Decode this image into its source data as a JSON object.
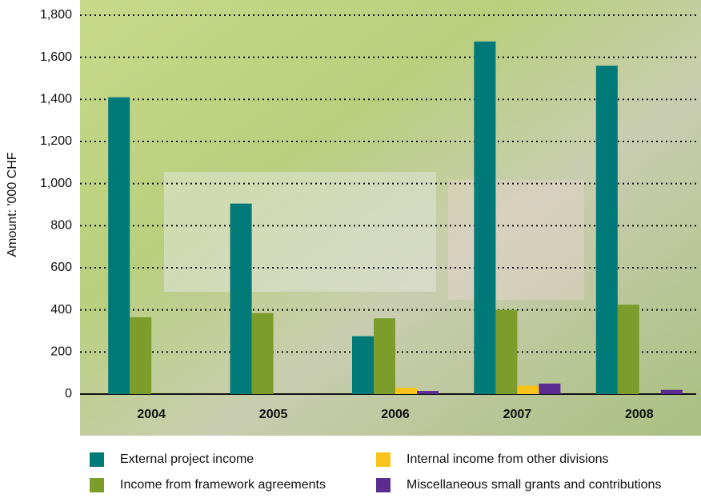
{
  "chart_data": {
    "type": "bar",
    "y_label": "Amount: '000 CHF",
    "categories": [
      "2004",
      "2005",
      "2006",
      "2007",
      "2008"
    ],
    "series": [
      {
        "name": "External project income",
        "color": "#007a78",
        "values": [
          1410,
          905,
          275,
          1675,
          1560
        ]
      },
      {
        "name": "Income from framework agreements",
        "color": "#7c9c2c",
        "values": [
          365,
          385,
          360,
          400,
          425
        ]
      },
      {
        "name": "Internal income from other divisions",
        "color": "#f8c41c",
        "values": [
          0,
          0,
          30,
          40,
          0
        ]
      },
      {
        "name": "Miscellaneous small grants and contributions",
        "color": "#5c2d91",
        "values": [
          0,
          0,
          15,
          50,
          20
        ]
      }
    ],
    "ylim": [
      0,
      1800
    ],
    "yticks": [
      0,
      200,
      400,
      600,
      800,
      {
        "value": 1000,
        "label": "1,000"
      },
      {
        "value": 1200,
        "label": "1,200"
      },
      {
        "value": 1400,
        "label": "1,400"
      },
      {
        "value": 1600,
        "label": "1,600"
      },
      {
        "value": 1800,
        "label": "1,800"
      }
    ],
    "grid": true
  }
}
